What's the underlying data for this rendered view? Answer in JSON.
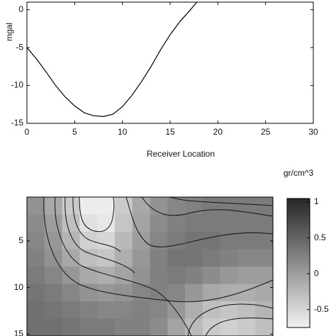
{
  "chart_data": [
    {
      "type": "line",
      "ylabel": "mgal",
      "xlabel": "Receiver Location",
      "x": [
        0,
        1,
        2,
        3,
        4,
        5,
        6,
        7,
        8,
        9,
        10,
        11,
        12,
        13,
        14,
        15,
        16,
        17,
        17.8
      ],
      "values": [
        -5,
        -6.5,
        -8.2,
        -10,
        -11.5,
        -12.7,
        -13.6,
        -14,
        -14.1,
        -13.8,
        -12.8,
        -11.3,
        -9.5,
        -7.5,
        -5.3,
        -3.3,
        -1.6,
        -0.2,
        1
      ],
      "color": "#000000",
      "xlim": [
        0,
        30
      ],
      "xticks": [
        0,
        5,
        10,
        15,
        20,
        25,
        30
      ],
      "ylim": [
        -15,
        1
      ],
      "yticks": [
        0,
        -5,
        -10,
        -15
      ]
    },
    {
      "type": "heatmap",
      "colorbar_label": "gr/cm^3",
      "ylim": [
        0.3,
        15.2
      ],
      "yticks": [
        5,
        10,
        15
      ],
      "clim": [
        -0.75,
        1.05
      ],
      "cticks": [
        1,
        0.5,
        0,
        -0.5
      ],
      "colormap": [
        "#f2f2f2",
        "#262626"
      ],
      "z": [
        [
          0.1,
          -0.1,
          -0.4,
          -0.7,
          -0.7,
          -0.4,
          -0.1,
          0.1,
          0.2,
          0.25,
          0.3,
          0.3,
          0.3,
          0.3
        ],
        [
          0.15,
          0,
          -0.3,
          -0.6,
          -0.65,
          -0.35,
          -0.05,
          0.15,
          0.25,
          0.3,
          0.3,
          0.3,
          0.3,
          0.3
        ],
        [
          0.2,
          0.05,
          -0.2,
          -0.45,
          -0.5,
          -0.25,
          0,
          0.2,
          0.3,
          0.35,
          0.35,
          0.3,
          0.3,
          0.3
        ],
        [
          0.25,
          0.1,
          -0.1,
          -0.3,
          -0.35,
          -0.15,
          0.05,
          0.25,
          0.35,
          0.35,
          0.3,
          0.25,
          0.2,
          0.2
        ],
        [
          0.3,
          0.2,
          0.05,
          -0.1,
          -0.15,
          -0.05,
          0.1,
          0.25,
          0.3,
          0.25,
          0.15,
          0.05,
          0,
          0
        ],
        [
          0.35,
          0.3,
          0.2,
          0.1,
          0.05,
          0.1,
          0.2,
          0.25,
          0.2,
          0.05,
          -0.1,
          -0.15,
          -0.15,
          -0.1
        ],
        [
          0.4,
          0.35,
          0.3,
          0.25,
          0.2,
          0.2,
          0.25,
          0.2,
          0.05,
          -0.15,
          -0.3,
          -0.35,
          -0.3,
          -0.2
        ],
        [
          0.4,
          0.4,
          0.35,
          0.3,
          0.3,
          0.25,
          0.25,
          0.15,
          -0.05,
          -0.25,
          -0.4,
          -0.45,
          -0.4,
          -0.3
        ]
      ]
    }
  ]
}
